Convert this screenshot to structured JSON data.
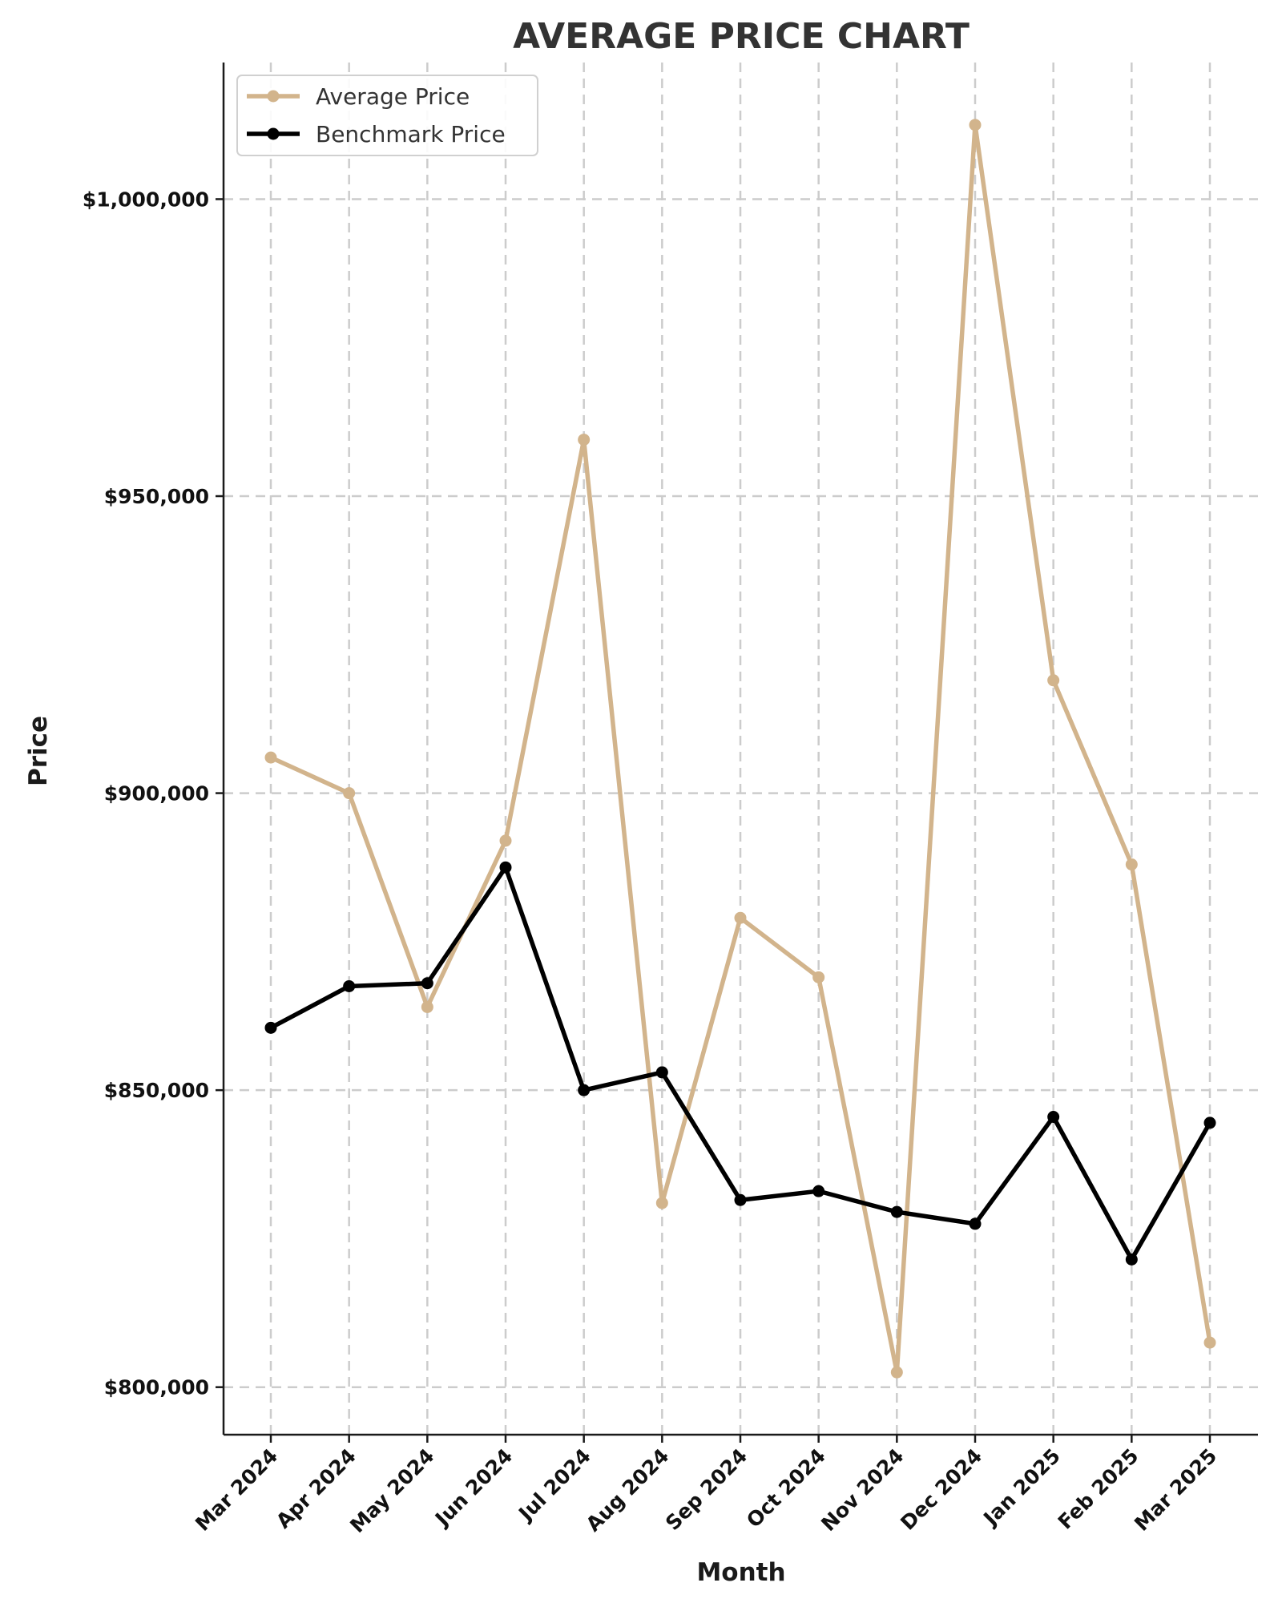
{
  "chart_data": {
    "type": "line",
    "title": "AVERAGE PRICE CHART",
    "xlabel": "Month",
    "ylabel": "Price",
    "categories": [
      "Mar 2024",
      "Apr 2024",
      "May 2024",
      "Jun 2024",
      "Jul 2024",
      "Aug 2024",
      "Sep 2024",
      "Oct 2024",
      "Nov 2024",
      "Dec 2024",
      "Jan 2025",
      "Feb 2025",
      "Mar 2025"
    ],
    "yticks": [
      800000,
      850000,
      900000,
      950000,
      1000000
    ],
    "ytick_labels": [
      "$800,000",
      "$850,000",
      "$900,000",
      "$950,000",
      "$1,000,000"
    ],
    "ylim": [
      792000,
      1023000
    ],
    "grid": true,
    "legend_position": "top-left",
    "series": [
      {
        "name": "Average Price",
        "color": "#d2b48c",
        "values": [
          906000,
          900000,
          864000,
          892000,
          959500,
          831000,
          879000,
          869000,
          802500,
          1012500,
          919000,
          888000,
          807500
        ]
      },
      {
        "name": "Benchmark Price",
        "color": "#000000",
        "values": [
          860500,
          867500,
          868000,
          887500,
          850000,
          853000,
          831500,
          833000,
          829500,
          827500,
          845500,
          821500,
          844500
        ]
      }
    ]
  }
}
